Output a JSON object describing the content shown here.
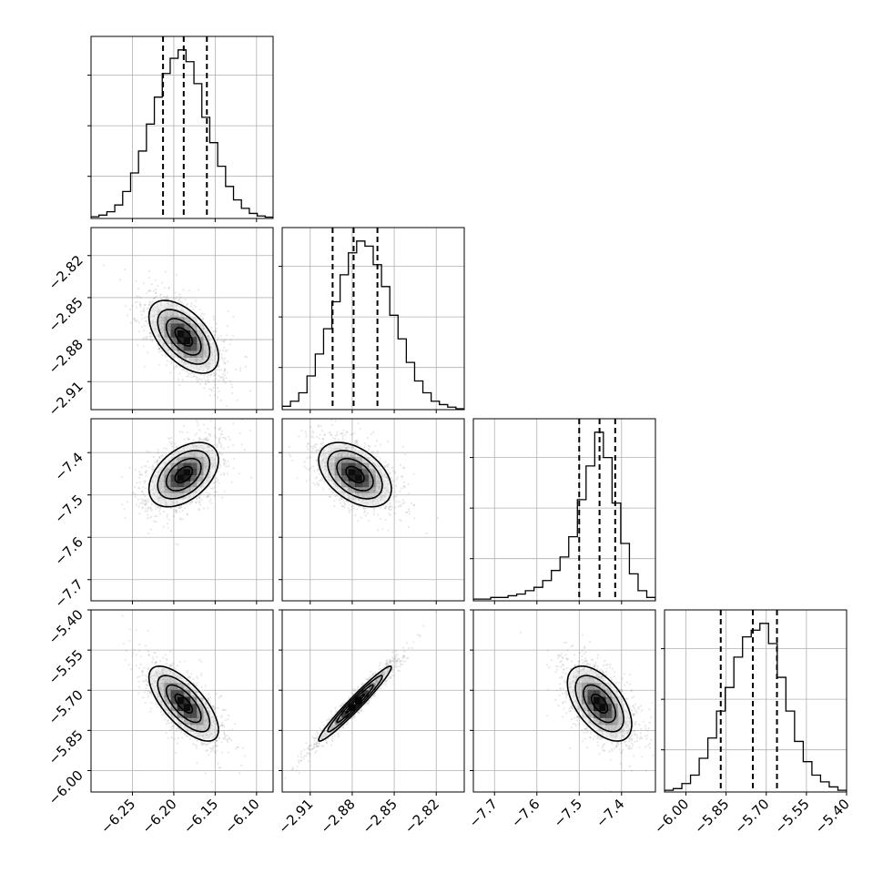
{
  "chart_data": {
    "type": "corner",
    "grid": true,
    "parameters": [
      {
        "id": "p0",
        "range": [
          -6.3,
          -6.08
        ],
        "ticks": [
          -6.25,
          -6.2,
          -6.15,
          -6.1
        ],
        "tick_labels": [
          "−6.25",
          "−6.20",
          "−6.15",
          "−6.10"
        ],
        "quantiles": [
          -6.213,
          -6.188,
          -6.16
        ],
        "mean": -6.188,
        "sd": 0.021
      },
      {
        "id": "p1",
        "range": [
          -2.93,
          -2.8
        ],
        "ticks": [
          -2.91,
          -2.88,
          -2.85,
          -2.82
        ],
        "tick_labels": [
          "−2.91",
          "−2.88",
          "−2.85",
          "−2.82"
        ],
        "quantiles": [
          -2.894,
          -2.879,
          -2.862
        ],
        "mean": -2.878,
        "sd": 0.013
      },
      {
        "id": "p2",
        "range": [
          -7.75,
          -7.32
        ],
        "ticks": [
          -7.7,
          -7.6,
          -7.5,
          -7.4
        ],
        "tick_labels": [
          "−7.7",
          "−7.6",
          "−7.5",
          "−7.4"
        ],
        "quantiles": [
          -7.5,
          -7.452,
          -7.415
        ],
        "mean": -7.452,
        "sd": 0.038
      },
      {
        "id": "p3",
        "range": [
          -6.08,
          -5.4
        ],
        "ticks": [
          -6.0,
          -5.85,
          -5.7,
          -5.55,
          -5.4
        ],
        "tick_labels": [
          "−6.00",
          "−5.85",
          "−5.70",
          "−5.55",
          "−5.40"
        ],
        "quantiles": [
          -5.87,
          -5.75,
          -5.66
        ],
        "mean": -5.75,
        "sd": 0.07
      }
    ],
    "histograms": {
      "p0": [
        0.01,
        0.02,
        0.04,
        0.08,
        0.16,
        0.27,
        0.4,
        0.56,
        0.72,
        0.86,
        0.95,
        1.0,
        0.93,
        0.8,
        0.6,
        0.45,
        0.31,
        0.19,
        0.11,
        0.06,
        0.03,
        0.015,
        0.008
      ],
      "p1": [
        0.02,
        0.05,
        0.1,
        0.2,
        0.33,
        0.48,
        0.64,
        0.8,
        0.93,
        1.0,
        0.97,
        0.86,
        0.73,
        0.56,
        0.42,
        0.28,
        0.17,
        0.1,
        0.05,
        0.03,
        0.015,
        0.005
      ],
      "p2": [
        0.01,
        0.01,
        0.02,
        0.02,
        0.03,
        0.04,
        0.06,
        0.08,
        0.12,
        0.18,
        0.26,
        0.38,
        0.6,
        0.8,
        1.0,
        0.85,
        0.58,
        0.34,
        0.16,
        0.06,
        0.02
      ],
      "p3": [
        0.01,
        0.02,
        0.05,
        0.1,
        0.2,
        0.32,
        0.48,
        0.62,
        0.8,
        0.92,
        0.96,
        1.0,
        0.88,
        0.68,
        0.48,
        0.3,
        0.18,
        0.1,
        0.06,
        0.03,
        0.01
      ]
    },
    "correlations": {
      "p1_p0": -0.55,
      "p2_p0": 0.45,
      "p2_p1": -0.45,
      "p3_p0": -0.7,
      "p3_p1": 0.97,
      "p3_p2": -0.55
    },
    "quantile_levels": [
      0.16,
      0.5,
      0.84
    ],
    "contour_levels": [
      0.5,
      1.0,
      1.5,
      2.0
    ]
  }
}
